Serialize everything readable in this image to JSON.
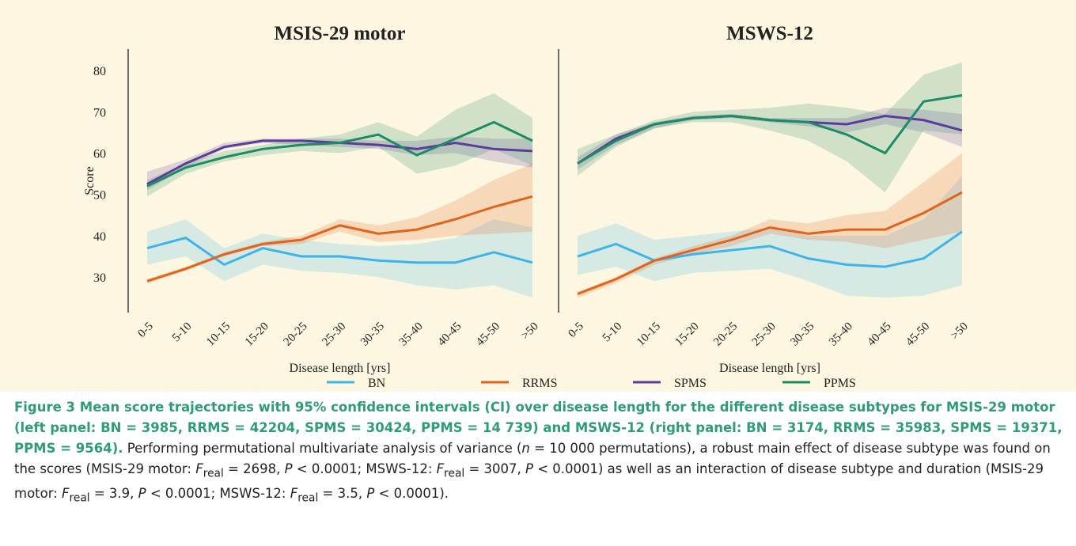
{
  "chart_data": [
    {
      "type": "line",
      "title": "MSIS-29 motor",
      "x_label": "Disease length [yrs]",
      "y_label": "Score",
      "categories": [
        "0-5",
        "5-10",
        "10-15",
        "15-20",
        "20-25",
        "25-30",
        "30-35",
        "35-40",
        "40-45",
        "45-50",
        ">50"
      ],
      "ylim": [
        21.4,
        85.2
      ],
      "yticks": [
        30,
        40,
        50,
        60,
        70,
        80
      ],
      "series": [
        {
          "name": "BN",
          "color": "#3db4ea",
          "values": [
            37,
            39.5,
            33,
            37,
            35,
            35,
            34,
            33.5,
            33.5,
            36,
            33.5
          ],
          "lower": [
            33,
            35,
            29,
            33,
            31.5,
            31,
            30,
            28,
            27,
            28,
            25
          ],
          "upper": [
            41,
            44,
            37,
            40.5,
            39,
            38,
            37.5,
            38,
            39.5,
            44,
            42
          ]
        },
        {
          "name": "RRMS",
          "color": "#e0641c",
          "values": [
            29,
            32,
            35.5,
            38,
            39,
            42.5,
            40.5,
            41.5,
            44,
            47,
            49.5
          ],
          "lower": [
            28.5,
            31.5,
            35,
            37.5,
            38,
            41,
            38.5,
            39,
            40,
            40.5,
            41
          ],
          "upper": [
            29.5,
            32.5,
            36,
            38.5,
            40,
            44,
            42.5,
            44.5,
            48.5,
            53.5,
            57.5
          ]
        },
        {
          "name": "SPMS",
          "color": "#5b3c9c",
          "values": [
            52.5,
            57.5,
            61.5,
            63,
            63,
            62.5,
            62,
            61,
            62.5,
            61,
            60.5
          ],
          "lower": [
            51,
            56.5,
            61,
            62.5,
            62,
            61.5,
            61,
            59.5,
            60,
            58,
            56.5
          ],
          "upper": [
            55.5,
            58.5,
            62.5,
            63.5,
            63.5,
            63.5,
            63,
            63,
            64,
            63.5,
            63.5
          ]
        },
        {
          "name": "PPMS",
          "color": "#1c8c64",
          "values": [
            52,
            56.5,
            59,
            61,
            62,
            62.5,
            64.5,
            59.5,
            63.5,
            67.5,
            63
          ],
          "lower": [
            49.5,
            55,
            58,
            59.5,
            60.5,
            60,
            61.5,
            55,
            57,
            61,
            57
          ],
          "upper": [
            53.5,
            57.5,
            60.5,
            62,
            63.5,
            64.5,
            67.5,
            64,
            70.5,
            74.5,
            68.5
          ]
        }
      ]
    },
    {
      "type": "line",
      "title": "MSWS-12",
      "x_label": "Disease length [yrs]",
      "categories": [
        "0-5",
        "5-10",
        "10-15",
        "15-20",
        "20-25",
        "25-30",
        "30-35",
        "35-40",
        "40-45",
        "45-50",
        ">50"
      ],
      "ylim": [
        21.4,
        85.2
      ],
      "series": [
        {
          "color": "#3db4ea",
          "values": [
            35,
            38,
            34,
            35.5,
            36.5,
            37.5,
            34.5,
            33,
            32.5,
            34.5,
            41
          ],
          "lower": [
            30.5,
            32.5,
            29,
            31,
            31.5,
            32,
            29,
            25.5,
            25,
            25.5,
            28
          ],
          "upper": [
            40,
            43,
            39,
            40,
            41,
            42,
            40,
            40,
            40,
            44,
            54.5
          ]
        },
        {
          "color": "#e0641c",
          "values": [
            25.9,
            29.5,
            34,
            36.5,
            39,
            42,
            40.5,
            41.5,
            41.5,
            45.5,
            50.5
          ],
          "lower": [
            25,
            28.5,
            33,
            35.5,
            37.5,
            40.5,
            39,
            38.5,
            37,
            39,
            41
          ],
          "upper": [
            26.5,
            30,
            34.5,
            37.5,
            40,
            44,
            43,
            45,
            46,
            53,
            60
          ]
        },
        {
          "color": "#5b3c9c",
          "values": [
            57.5,
            63.5,
            67,
            68.5,
            69,
            68,
            67.5,
            67,
            69,
            68,
            65.5
          ],
          "lower": [
            56,
            62,
            66,
            68,
            68.5,
            67.5,
            66.5,
            65,
            67,
            65,
            61.5
          ],
          "upper": [
            59,
            64.5,
            67.5,
            69,
            69.5,
            68.5,
            68.5,
            68.5,
            71,
            70.5,
            69.5
          ]
        },
        {
          "color": "#1c8c64",
          "values": [
            57.5,
            63,
            67,
            68.5,
            69,
            68,
            67.5,
            64.5,
            60,
            72.5,
            74
          ],
          "lower": [
            54.5,
            61.5,
            66,
            67.5,
            67.5,
            65.5,
            63,
            58,
            50.5,
            65.5,
            64.5
          ],
          "upper": [
            61,
            64.5,
            68,
            70,
            70.5,
            71,
            72,
            71,
            69.5,
            79,
            82
          ]
        }
      ]
    }
  ],
  "caption": {
    "heading": "Figure 3 Mean score trajectories with 95% confidence intervals (CI) over disease length for the different disease subtypes for MSIS-29 motor (left panel: BN = 3985, RRMS = 42204, SPMS = 30424, PPMS = 14 739) and MSWS-12 (right panel: BN = 3174, RRMS = 35983, SPMS = 19371, PPMS = 9564).",
    "body": [
      "Performing permutational multivariate analysis of variance (",
      "n",
      " = 10 000 permutations), a robust main effect of disease subtype was found on the scores (MSIS-29 motor: ",
      "F",
      "real",
      " = 2698, ",
      "P",
      " < 0.0001; MSWS-12: ",
      "F",
      "real",
      " = 3007, ",
      "P",
      " < 0.0001) as well as an interaction of disease subtype and duration (MSIS-29 motor: ",
      "F",
      "real",
      " = 3.9, ",
      "P",
      " < 0.0001; MSWS-12: ",
      "F",
      "real",
      " = 3.5, ",
      "P",
      " < 0.0001)."
    ]
  }
}
